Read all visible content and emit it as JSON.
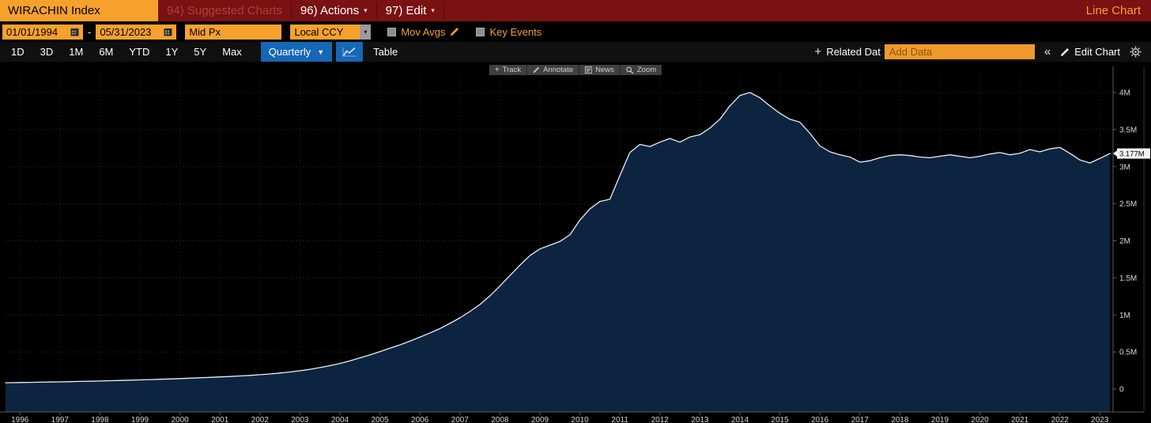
{
  "colors": {
    "titlebar_bg": "#7a1113",
    "amber_accent": "#f7a12d",
    "dim_red_text": "#a8423a",
    "blue_accent": "#1667b5",
    "area_fill": "#0d2440",
    "line_color": "#e8eff6",
    "grid_color": "#2d2d2d",
    "axis_color": "#5c5c5c",
    "label_bg": "#f2f2f2"
  },
  "icons": {
    "caret_small": "▾",
    "caret_down": "▼",
    "plus": "+",
    "double_chevron": "«"
  },
  "titlebar": {
    "ticker": "WIRACHIN Index",
    "suggested": "94) Suggested Charts",
    "actions": "96) Actions",
    "edit": "97) Edit",
    "chart_type": "Line Chart"
  },
  "fieldbar": {
    "start_date": "01/01/1994",
    "dash": "-",
    "end_date": "05/31/2023",
    "price_field": "Mid Px",
    "currency": "Local CCY",
    "mov_avgs": "Mov Avgs",
    "key_events": "Key Events"
  },
  "periodbar": {
    "ranges": [
      "1D",
      "3D",
      "1M",
      "6M",
      "YTD",
      "1Y",
      "5Y",
      "Max"
    ],
    "frequency": "Quarterly",
    "table": "Table",
    "related": "Related Dat",
    "add_data_placeholder": "Add Data",
    "edit_chart": "Edit Chart"
  },
  "chart_toolbar": {
    "track": "Track",
    "annotate": "Annotate",
    "news": "News",
    "zoom": "Zoom"
  },
  "chart_data": {
    "type": "area",
    "title": "WIRACHIN Index",
    "legend_position": "none",
    "grid": true,
    "frequency": "Quarterly",
    "last_value": 3.177,
    "last_label": "3.177M",
    "unit": "millions",
    "ylim": [
      0,
      4
    ],
    "x_domain": [
      1995.64,
      2023.33
    ],
    "x_ticks": [
      1996,
      1997,
      1998,
      1999,
      2000,
      2001,
      2002,
      2003,
      2004,
      2005,
      2006,
      2007,
      2008,
      2009,
      2010,
      2011,
      2012,
      2013,
      2014,
      2015,
      2016,
      2017,
      2018,
      2019,
      2020,
      2021,
      2022,
      2023
    ],
    "y_ticks": [
      [
        4,
        "4M"
      ],
      [
        3.5,
        "3.5M"
      ],
      [
        3,
        "3M"
      ],
      [
        2.5,
        "2.5M"
      ],
      [
        2,
        "2M"
      ],
      [
        1.5,
        "1.5M"
      ],
      [
        1,
        "1M"
      ],
      [
        0.5,
        "0.5M"
      ],
      [
        0,
        "0"
      ]
    ],
    "colors": {
      "fill": "#0d2440",
      "line": "#e8eff6",
      "grid_h": "#2d2d2d",
      "grid_v": "#222222",
      "axis": "#5c5c5c",
      "tick_text": "#d6d6d6",
      "label_bg": "#f2f2f2"
    },
    "series": [
      {
        "name": "WIRACHIN Index Mid Px",
        "points": [
          [
            1995.64,
            0.084
          ],
          [
            1995.75,
            0.085
          ],
          [
            1996,
            0.088
          ],
          [
            1996.25,
            0.09
          ],
          [
            1996.5,
            0.092
          ],
          [
            1996.75,
            0.094
          ],
          [
            1997,
            0.096
          ],
          [
            1997.25,
            0.099
          ],
          [
            1997.5,
            0.102
          ],
          [
            1997.75,
            0.105
          ],
          [
            1998,
            0.108
          ],
          [
            1998.25,
            0.112
          ],
          [
            1998.5,
            0.115
          ],
          [
            1998.75,
            0.119
          ],
          [
            1999,
            0.123
          ],
          [
            1999.25,
            0.127
          ],
          [
            1999.5,
            0.131
          ],
          [
            1999.75,
            0.136
          ],
          [
            2000,
            0.141
          ],
          [
            2000.25,
            0.146
          ],
          [
            2000.5,
            0.151
          ],
          [
            2000.75,
            0.157
          ],
          [
            2001,
            0.163
          ],
          [
            2001.25,
            0.169
          ],
          [
            2001.5,
            0.176
          ],
          [
            2001.75,
            0.184
          ],
          [
            2002,
            0.193
          ],
          [
            2002.25,
            0.203
          ],
          [
            2002.5,
            0.215
          ],
          [
            2002.75,
            0.229
          ],
          [
            2003,
            0.246
          ],
          [
            2003.25,
            0.266
          ],
          [
            2003.5,
            0.289
          ],
          [
            2003.75,
            0.315
          ],
          [
            2004,
            0.345
          ],
          [
            2004.25,
            0.38
          ],
          [
            2004.5,
            0.42
          ],
          [
            2004.75,
            0.46
          ],
          [
            2005,
            0.505
          ],
          [
            2005.25,
            0.55
          ],
          [
            2005.5,
            0.595
          ],
          [
            2005.75,
            0.645
          ],
          [
            2006,
            0.7
          ],
          [
            2006.25,
            0.755
          ],
          [
            2006.5,
            0.815
          ],
          [
            2006.75,
            0.885
          ],
          [
            2007,
            0.96
          ],
          [
            2007.25,
            1.045
          ],
          [
            2007.5,
            1.14
          ],
          [
            2007.75,
            1.255
          ],
          [
            2008,
            1.39
          ],
          [
            2008.25,
            1.53
          ],
          [
            2008.5,
            1.67
          ],
          [
            2008.75,
            1.8
          ],
          [
            2009,
            1.89
          ],
          [
            2009.25,
            1.94
          ],
          [
            2009.5,
            1.99
          ],
          [
            2009.75,
            2.08
          ],
          [
            2010,
            2.28
          ],
          [
            2010.25,
            2.43
          ],
          [
            2010.5,
            2.53
          ],
          [
            2010.75,
            2.56
          ],
          [
            2011,
            2.88
          ],
          [
            2011.25,
            3.19
          ],
          [
            2011.5,
            3.3
          ],
          [
            2011.75,
            3.27
          ],
          [
            2012,
            3.33
          ],
          [
            2012.25,
            3.38
          ],
          [
            2012.5,
            3.33
          ],
          [
            2012.75,
            3.4
          ],
          [
            2013,
            3.43
          ],
          [
            2013.25,
            3.52
          ],
          [
            2013.5,
            3.64
          ],
          [
            2013.75,
            3.82
          ],
          [
            2014,
            3.96
          ],
          [
            2014.25,
            4.0
          ],
          [
            2014.5,
            3.93
          ],
          [
            2014.75,
            3.82
          ],
          [
            2015,
            3.72
          ],
          [
            2015.25,
            3.64
          ],
          [
            2015.5,
            3.6
          ],
          [
            2015.75,
            3.45
          ],
          [
            2016,
            3.28
          ],
          [
            2016.25,
            3.2
          ],
          [
            2016.5,
            3.16
          ],
          [
            2016.75,
            3.13
          ],
          [
            2017,
            3.06
          ],
          [
            2017.25,
            3.08
          ],
          [
            2017.5,
            3.12
          ],
          [
            2017.75,
            3.15
          ],
          [
            2018,
            3.16
          ],
          [
            2018.25,
            3.15
          ],
          [
            2018.5,
            3.13
          ],
          [
            2018.75,
            3.12
          ],
          [
            2019,
            3.14
          ],
          [
            2019.25,
            3.16
          ],
          [
            2019.5,
            3.14
          ],
          [
            2019.75,
            3.12
          ],
          [
            2020,
            3.14
          ],
          [
            2020.25,
            3.17
          ],
          [
            2020.5,
            3.19
          ],
          [
            2020.75,
            3.16
          ],
          [
            2021,
            3.18
          ],
          [
            2021.25,
            3.23
          ],
          [
            2021.5,
            3.2
          ],
          [
            2021.75,
            3.24
          ],
          [
            2022,
            3.26
          ],
          [
            2022.25,
            3.18
          ],
          [
            2022.5,
            3.09
          ],
          [
            2022.75,
            3.05
          ],
          [
            2023,
            3.11
          ],
          [
            2023.25,
            3.177
          ]
        ]
      }
    ]
  }
}
